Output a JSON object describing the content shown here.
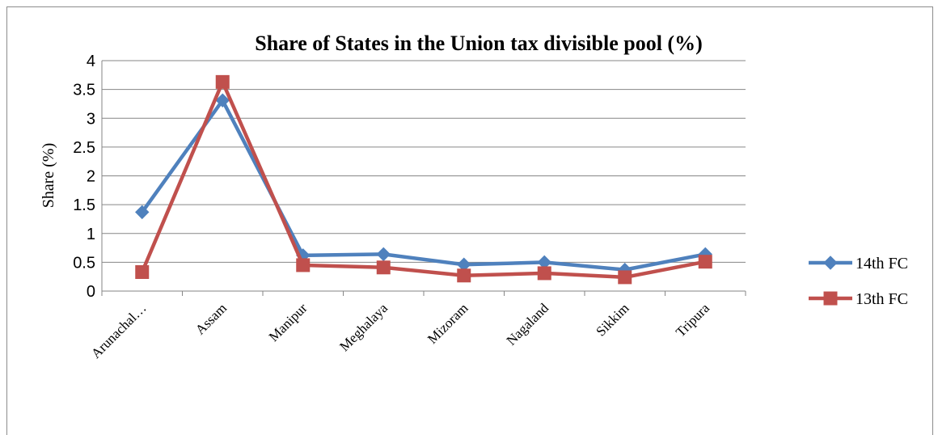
{
  "chart_data": {
    "type": "line",
    "title": "Share of States in the Union tax divisible pool (%)",
    "xlabel": "",
    "ylabel": "Share (%)",
    "ylim": [
      0,
      4
    ],
    "yticks": [
      "0",
      "0.5",
      "1",
      "1.5",
      "2",
      "2.5",
      "3",
      "3.5",
      "4"
    ],
    "grid": true,
    "legend_position": "right",
    "categories": [
      "Arunachal…",
      "Assam",
      "Manipur",
      "Meghalaya",
      "Mizoram",
      "Nagaland",
      "Sikkim",
      "Tripura"
    ],
    "series": [
      {
        "name": "14th FC",
        "color": "#4f81bd",
        "marker": "diamond",
        "values": [
          1.37,
          3.31,
          0.62,
          0.64,
          0.46,
          0.5,
          0.37,
          0.64
        ]
      },
      {
        "name": "13th FC",
        "color": "#c0504d",
        "marker": "square",
        "values": [
          0.33,
          3.63,
          0.45,
          0.41,
          0.27,
          0.31,
          0.24,
          0.51
        ]
      }
    ]
  }
}
